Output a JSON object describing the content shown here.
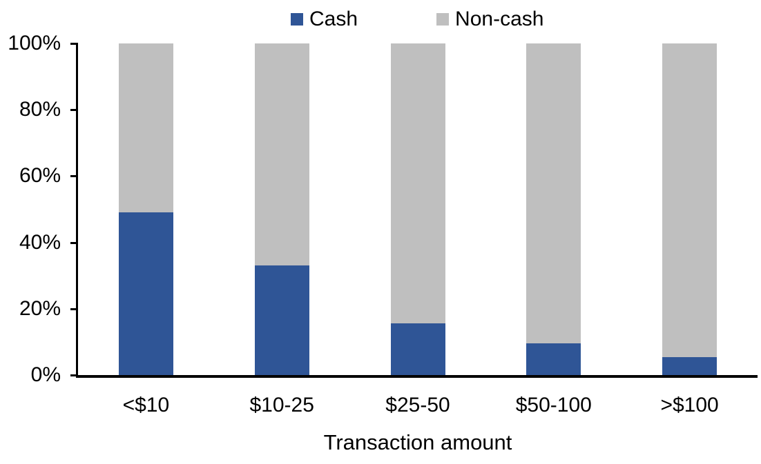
{
  "chart_data": {
    "type": "bar",
    "stacked": true,
    "percent": true,
    "title": "",
    "xlabel": "Transaction amount",
    "ylabel": "",
    "categories": [
      "<$10",
      "$10-25",
      "$25-50",
      "$50-100",
      ">$100"
    ],
    "series": [
      {
        "name": "Cash",
        "color": "#2F5596",
        "values": [
          49,
          33,
          15.5,
          9.5,
          5.5
        ]
      },
      {
        "name": "Non-cash",
        "color": "#BFBFBF",
        "values": [
          51,
          67,
          84.5,
          90.5,
          94.5
        ]
      }
    ],
    "ylim": [
      0,
      100
    ],
    "y_ticks": [
      "0%",
      "20%",
      "40%",
      "60%",
      "80%",
      "100%"
    ],
    "grid": false,
    "legend_position": "top",
    "axis_color": "#000000",
    "text_color": "#000000"
  }
}
